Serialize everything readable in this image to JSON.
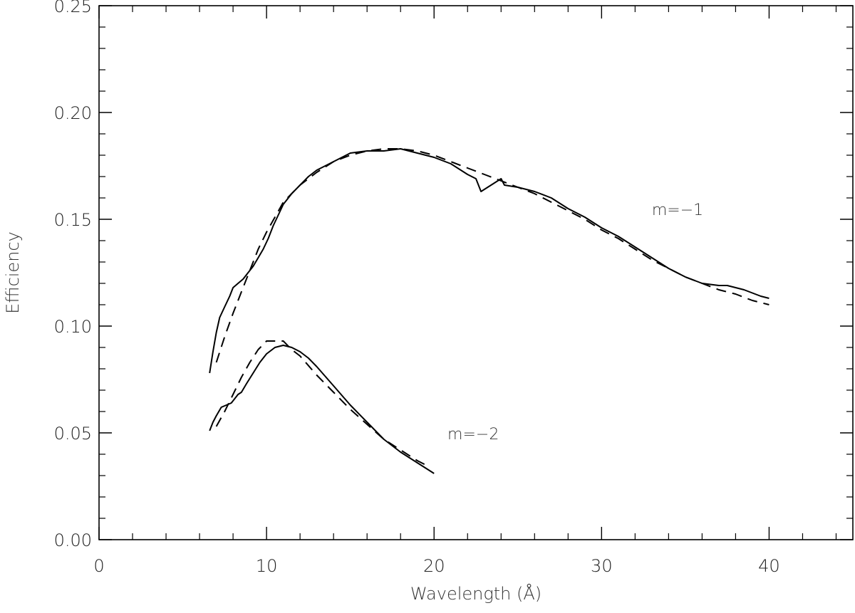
{
  "chart_data": {
    "type": "line",
    "xlabel": "Wavelength (Å)",
    "ylabel": "Efficiency",
    "xlim": [
      0,
      45
    ],
    "ylim": [
      0,
      0.25
    ],
    "x_ticks": [
      0,
      10,
      20,
      30,
      40
    ],
    "x_tick_labels": [
      "0",
      "10",
      "20",
      "30",
      "40"
    ],
    "y_ticks": [
      0,
      0.05,
      0.1,
      0.15,
      0.2,
      0.25
    ],
    "y_tick_labels": [
      "0.00",
      "0.05",
      "0.10",
      "0.15",
      "0.20",
      "0.25"
    ],
    "grid": false,
    "legend": "none",
    "annotations": [
      {
        "text": "m=−1",
        "x": 33.0,
        "y": 0.152
      },
      {
        "text": "m=−2",
        "x": 20.8,
        "y": 0.047
      }
    ],
    "series": [
      {
        "style": "solid",
        "points": [
          [
            6.6,
            0.078
          ],
          [
            6.8,
            0.088
          ],
          [
            7.0,
            0.097
          ],
          [
            7.2,
            0.104
          ],
          [
            7.5,
            0.109
          ],
          [
            7.8,
            0.114
          ],
          [
            8.0,
            0.118
          ],
          [
            8.3,
            0.12
          ],
          [
            8.6,
            0.122
          ],
          [
            8.9,
            0.125
          ],
          [
            9.2,
            0.128
          ],
          [
            9.5,
            0.132
          ],
          [
            9.8,
            0.136
          ],
          [
            10.1,
            0.141
          ],
          [
            10.4,
            0.147
          ],
          [
            10.7,
            0.152
          ],
          [
            11.0,
            0.157
          ],
          [
            11.5,
            0.162
          ],
          [
            12.0,
            0.166
          ],
          [
            12.5,
            0.17
          ],
          [
            13.0,
            0.173
          ],
          [
            14.0,
            0.177
          ],
          [
            15.0,
            0.181
          ],
          [
            16.0,
            0.182
          ],
          [
            17.0,
            0.182
          ],
          [
            18.0,
            0.183
          ],
          [
            19.0,
            0.181
          ],
          [
            20.0,
            0.179
          ],
          [
            21.0,
            0.176
          ],
          [
            22.0,
            0.171
          ],
          [
            22.5,
            0.169
          ],
          [
            22.8,
            0.163
          ],
          [
            23.2,
            0.165
          ],
          [
            23.6,
            0.167
          ],
          [
            24.0,
            0.169
          ],
          [
            24.2,
            0.166
          ],
          [
            25.0,
            0.165
          ],
          [
            26.0,
            0.163
          ],
          [
            27.0,
            0.16
          ],
          [
            28.0,
            0.155
          ],
          [
            29.0,
            0.151
          ],
          [
            30.0,
            0.146
          ],
          [
            31.0,
            0.142
          ],
          [
            32.0,
            0.137
          ],
          [
            33.0,
            0.132
          ],
          [
            34.0,
            0.127
          ],
          [
            35.0,
            0.123
          ],
          [
            36.0,
            0.12
          ],
          [
            37.0,
            0.119
          ],
          [
            37.5,
            0.119
          ],
          [
            38.5,
            0.117
          ],
          [
            39.5,
            0.114
          ],
          [
            40.0,
            0.113
          ]
        ]
      },
      {
        "style": "dashed",
        "points": [
          [
            7.0,
            0.083
          ],
          [
            7.5,
            0.095
          ],
          [
            8.0,
            0.106
          ],
          [
            8.5,
            0.116
          ],
          [
            9.0,
            0.126
          ],
          [
            9.5,
            0.136
          ],
          [
            10.0,
            0.144
          ],
          [
            10.5,
            0.151
          ],
          [
            11.0,
            0.158
          ],
          [
            12.0,
            0.166
          ],
          [
            13.0,
            0.172
          ],
          [
            14.0,
            0.177
          ],
          [
            15.0,
            0.18
          ],
          [
            16.0,
            0.182
          ],
          [
            17.0,
            0.183
          ],
          [
            18.0,
            0.183
          ],
          [
            19.0,
            0.182
          ],
          [
            20.0,
            0.18
          ],
          [
            21.0,
            0.177
          ],
          [
            22.0,
            0.174
          ],
          [
            23.0,
            0.171
          ],
          [
            24.0,
            0.168
          ],
          [
            25.0,
            0.165
          ],
          [
            26.0,
            0.162
          ],
          [
            27.0,
            0.158
          ],
          [
            28.0,
            0.154
          ],
          [
            29.0,
            0.15
          ],
          [
            30.0,
            0.145
          ],
          [
            31.0,
            0.141
          ],
          [
            32.0,
            0.136
          ],
          [
            33.0,
            0.131
          ],
          [
            34.0,
            0.127
          ],
          [
            35.0,
            0.123
          ],
          [
            36.0,
            0.12
          ],
          [
            37.0,
            0.117
          ],
          [
            38.0,
            0.115
          ],
          [
            39.0,
            0.112
          ],
          [
            40.0,
            0.11
          ]
        ]
      },
      {
        "style": "solid",
        "points": [
          [
            6.6,
            0.051
          ],
          [
            6.8,
            0.055
          ],
          [
            7.0,
            0.058
          ],
          [
            7.3,
            0.062
          ],
          [
            7.6,
            0.063
          ],
          [
            7.9,
            0.064
          ],
          [
            8.1,
            0.066
          ],
          [
            8.3,
            0.068
          ],
          [
            8.5,
            0.069
          ],
          [
            8.8,
            0.073
          ],
          [
            9.2,
            0.078
          ],
          [
            9.6,
            0.083
          ],
          [
            10.0,
            0.087
          ],
          [
            10.5,
            0.09
          ],
          [
            11.0,
            0.091
          ],
          [
            11.5,
            0.09
          ],
          [
            12.0,
            0.088
          ],
          [
            12.5,
            0.085
          ],
          [
            13.0,
            0.081
          ],
          [
            14.0,
            0.072
          ],
          [
            15.0,
            0.063
          ],
          [
            16.0,
            0.055
          ],
          [
            17.0,
            0.047
          ],
          [
            18.0,
            0.041
          ],
          [
            19.0,
            0.036
          ],
          [
            20.0,
            0.031
          ]
        ]
      },
      {
        "style": "dashed",
        "points": [
          [
            7.0,
            0.053
          ],
          [
            7.5,
            0.06
          ],
          [
            8.0,
            0.068
          ],
          [
            8.5,
            0.076
          ],
          [
            9.0,
            0.083
          ],
          [
            9.5,
            0.089
          ],
          [
            10.0,
            0.093
          ],
          [
            11.0,
            0.093
          ],
          [
            11.5,
            0.089
          ],
          [
            12.0,
            0.086
          ],
          [
            13.0,
            0.077
          ],
          [
            14.0,
            0.069
          ],
          [
            15.0,
            0.061
          ],
          [
            16.0,
            0.054
          ],
          [
            17.0,
            0.047
          ],
          [
            18.0,
            0.042
          ],
          [
            19.0,
            0.037
          ],
          [
            19.5,
            0.035
          ]
        ]
      }
    ]
  }
}
